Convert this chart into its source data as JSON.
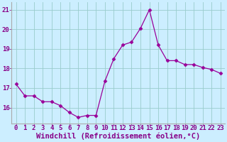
{
  "x": [
    0,
    1,
    2,
    3,
    4,
    5,
    6,
    7,
    8,
    9,
    10,
    11,
    12,
    13,
    14,
    15,
    16,
    17,
    18,
    19,
    20,
    21,
    22,
    23
  ],
  "y": [
    17.2,
    16.6,
    16.6,
    16.3,
    16.3,
    16.1,
    15.75,
    15.5,
    15.6,
    15.6,
    17.35,
    18.5,
    19.2,
    19.35,
    20.05,
    21.0,
    19.2,
    18.4,
    18.4,
    18.2,
    18.2,
    18.05,
    17.95,
    17.75
  ],
  "xlim": [
    -0.5,
    23.5
  ],
  "ylim": [
    15.2,
    21.4
  ],
  "yticks": [
    16,
    17,
    18,
    19,
    20,
    21
  ],
  "xticks": [
    0,
    1,
    2,
    3,
    4,
    5,
    6,
    7,
    8,
    9,
    10,
    11,
    12,
    13,
    14,
    15,
    16,
    17,
    18,
    19,
    20,
    21,
    22,
    23
  ],
  "xlabel": "Windchill (Refroidissement éolien,°C)",
  "line_color": "#990099",
  "marker": "D",
  "marker_size": 2.5,
  "bg_color": "#cceeff",
  "grid_color": "#99cccc",
  "tick_color": "#880088",
  "label_color": "#880088",
  "tick_fontsize": 6.5,
  "xlabel_fontsize": 7.5,
  "spine_color": "#aaaaaa"
}
